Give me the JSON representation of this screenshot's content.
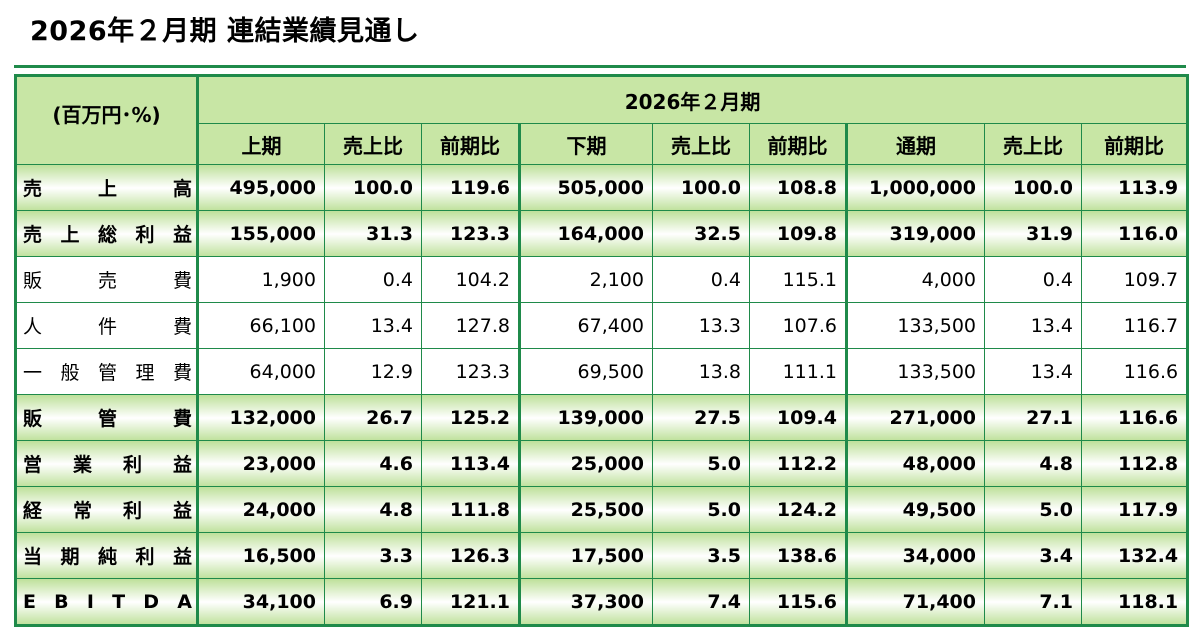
{
  "title": "2026年２月期 連結業績見通し",
  "header": {
    "unit": "(百万円･%)",
    "period": "2026年２月期",
    "columns": [
      "上期",
      "売上比",
      "前期比",
      "下期",
      "売上比",
      "前期比",
      "通期",
      "売上比",
      "前期比"
    ]
  },
  "rows": [
    {
      "label": "売上高",
      "style": "bold",
      "values": [
        "495,000",
        "100.0",
        "119.6",
        "505,000",
        "100.0",
        "108.8",
        "1,000,000",
        "100.0",
        "113.9"
      ]
    },
    {
      "label": "売上総利益",
      "style": "bold",
      "values": [
        "155,000",
        "31.3",
        "123.3",
        "164,000",
        "32.5",
        "109.8",
        "319,000",
        "31.9",
        "116.0"
      ]
    },
    {
      "label": "販売費",
      "style": "plain",
      "values": [
        "1,900",
        "0.4",
        "104.2",
        "2,100",
        "0.4",
        "115.1",
        "4,000",
        "0.4",
        "109.7"
      ]
    },
    {
      "label": "人件費",
      "style": "plain",
      "values": [
        "66,100",
        "13.4",
        "127.8",
        "67,400",
        "13.3",
        "107.6",
        "133,500",
        "13.4",
        "116.7"
      ]
    },
    {
      "label": "一般管理費",
      "style": "plain",
      "values": [
        "64,000",
        "12.9",
        "123.3",
        "69,500",
        "13.8",
        "111.1",
        "133,500",
        "13.4",
        "116.6"
      ]
    },
    {
      "label": "販管費",
      "style": "bold",
      "values": [
        "132,000",
        "26.7",
        "125.2",
        "139,000",
        "27.5",
        "109.4",
        "271,000",
        "27.1",
        "116.6"
      ]
    },
    {
      "label": "営業利益",
      "style": "bold",
      "values": [
        "23,000",
        "4.6",
        "113.4",
        "25,000",
        "5.0",
        "112.2",
        "48,000",
        "4.8",
        "112.8"
      ]
    },
    {
      "label": "経常利益",
      "style": "bold",
      "values": [
        "24,000",
        "4.8",
        "111.8",
        "25,500",
        "5.0",
        "124.2",
        "49,500",
        "5.0",
        "117.9"
      ]
    },
    {
      "label": "当期純利益",
      "style": "bold",
      "values": [
        "16,500",
        "3.3",
        "126.3",
        "17,500",
        "3.5",
        "138.6",
        "34,000",
        "3.4",
        "132.4"
      ]
    },
    {
      "label": "EBITDA",
      "style": "bold",
      "values": [
        "34,100",
        "6.9",
        "121.1",
        "37,300",
        "7.4",
        "115.6",
        "71,400",
        "7.1",
        "118.1"
      ]
    }
  ],
  "colors": {
    "accent": "#1f8a4a",
    "header_fill": "#c8e6a5",
    "row_gradient": "#bfe19c"
  }
}
